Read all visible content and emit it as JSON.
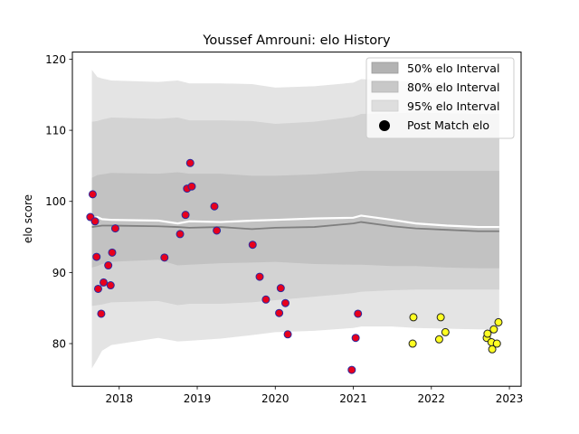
{
  "chart_data": {
    "type": "scatter",
    "title": "Youssef Amrouni: elo History",
    "xlabel": "",
    "ylabel": "elo score",
    "xlim": [
      2017.4,
      2023.15
    ],
    "ylim": [
      74.0,
      121.0
    ],
    "xticks": [
      2018,
      2019,
      2020,
      2021,
      2022,
      2023
    ],
    "xtick_labels": [
      "2018",
      "2019",
      "2020",
      "2021",
      "2022",
      "2023"
    ],
    "yticks": [
      80,
      90,
      100,
      110,
      120
    ],
    "ytick_labels": [
      "80",
      "90",
      "100",
      "110",
      "120"
    ],
    "grid": false,
    "legend_position": "top-right",
    "legend": [
      {
        "label": "50% elo Interval",
        "kind": "patch",
        "color": "#b3b3b3"
      },
      {
        "label": "80% elo Interval",
        "kind": "patch",
        "color": "#c8c8c8"
      },
      {
        "label": "95% elo Interval",
        "kind": "patch",
        "color": "#dedede"
      },
      {
        "label": "Post Match elo",
        "kind": "marker",
        "color": "#000000"
      }
    ],
    "colors": {
      "band95": "#e4e4e4",
      "band80": "#d3d3d3",
      "band50": "#c2c2c2",
      "median_line": "#7f7f7f",
      "mean_line": "#ffffff",
      "past_fill": "#e8001c",
      "past_edge": "#2a2aa0",
      "recent_fill": "#ffff22",
      "recent_edge": "#222222"
    },
    "bands": {
      "x": [
        2017.65,
        2017.72,
        2017.78,
        2017.9,
        2018.5,
        2018.75,
        2018.9,
        2019.3,
        2019.7,
        2020.0,
        2020.5,
        2021.0,
        2021.1,
        2021.5,
        2021.8,
        2022.2,
        2022.6,
        2022.87
      ],
      "upper95": [
        118.5,
        117.5,
        117.3,
        117.0,
        116.8,
        117.0,
        116.6,
        116.6,
        116.5,
        116.0,
        116.2,
        116.7,
        117.2,
        117.0,
        116.8,
        116.5,
        116.4,
        116.4
      ],
      "lower95": [
        76.5,
        77.8,
        79.0,
        79.8,
        80.8,
        80.3,
        80.4,
        80.7,
        81.2,
        81.6,
        81.8,
        82.2,
        82.4,
        82.4,
        82.2,
        82.1,
        82.0,
        82.0
      ],
      "upper80": [
        111.2,
        111.3,
        111.5,
        111.8,
        111.6,
        111.8,
        111.4,
        111.4,
        111.3,
        110.9,
        111.2,
        111.9,
        112.3,
        112.4,
        112.5,
        112.4,
        112.3,
        112.3
      ],
      "lower80": [
        85.3,
        85.4,
        85.5,
        85.8,
        86.0,
        85.4,
        85.6,
        85.6,
        85.8,
        86.1,
        86.6,
        87.1,
        87.3,
        87.5,
        87.6,
        87.6,
        87.6,
        87.6
      ],
      "upper50": [
        103.3,
        103.7,
        103.8,
        104.0,
        103.9,
        104.1,
        103.9,
        103.9,
        103.6,
        103.6,
        103.8,
        104.2,
        104.3,
        104.3,
        104.3,
        104.3,
        104.3,
        104.3
      ],
      "lower50": [
        90.7,
        90.9,
        91.2,
        91.5,
        91.8,
        91.0,
        91.1,
        91.3,
        91.4,
        91.5,
        91.2,
        91.1,
        91.1,
        90.9,
        90.9,
        90.7,
        90.6,
        90.6
      ],
      "median": [
        96.4,
        96.5,
        96.6,
        96.6,
        96.5,
        96.4,
        96.3,
        96.4,
        96.1,
        96.3,
        96.4,
        96.9,
        97.1,
        96.5,
        96.2,
        96.0,
        95.8,
        95.8
      ],
      "mean": [
        97.6,
        97.8,
        97.5,
        97.4,
        97.3,
        96.9,
        97.2,
        97.1,
        97.3,
        97.4,
        97.6,
        97.7,
        98.0,
        97.4,
        96.9,
        96.6,
        96.4,
        96.4
      ]
    },
    "series": [
      {
        "group": "past",
        "x": [
          2017.63,
          2017.66,
          2017.69,
          2017.71,
          2017.73,
          2017.77,
          2017.8,
          2017.86,
          2017.89,
          2017.91,
          2017.95,
          2018.58,
          2018.78,
          2018.85,
          2018.87,
          2018.91,
          2018.93,
          2019.22,
          2019.25,
          2019.71,
          2019.8,
          2019.88,
          2020.05,
          2020.07,
          2020.13,
          2020.16,
          2020.98,
          2021.03,
          2021.06
        ],
        "y": [
          97.8,
          101.0,
          97.2,
          92.2,
          87.7,
          84.2,
          88.6,
          91.0,
          88.2,
          92.8,
          96.2,
          92.1,
          95.4,
          98.1,
          101.8,
          105.4,
          102.1,
          99.3,
          95.9,
          93.9,
          89.4,
          86.2,
          84.3,
          87.8,
          85.7,
          81.3,
          76.3,
          80.8,
          84.2
        ]
      },
      {
        "group": "recent",
        "x": [
          2021.76,
          2021.77,
          2022.1,
          2022.12,
          2022.18,
          2022.71,
          2022.72,
          2022.77,
          2022.78,
          2022.8,
          2022.84,
          2022.86
        ],
        "y": [
          80.0,
          83.7,
          80.6,
          83.7,
          81.6,
          80.8,
          81.4,
          80.2,
          79.2,
          82.0,
          80.0,
          83.0
        ]
      }
    ]
  }
}
